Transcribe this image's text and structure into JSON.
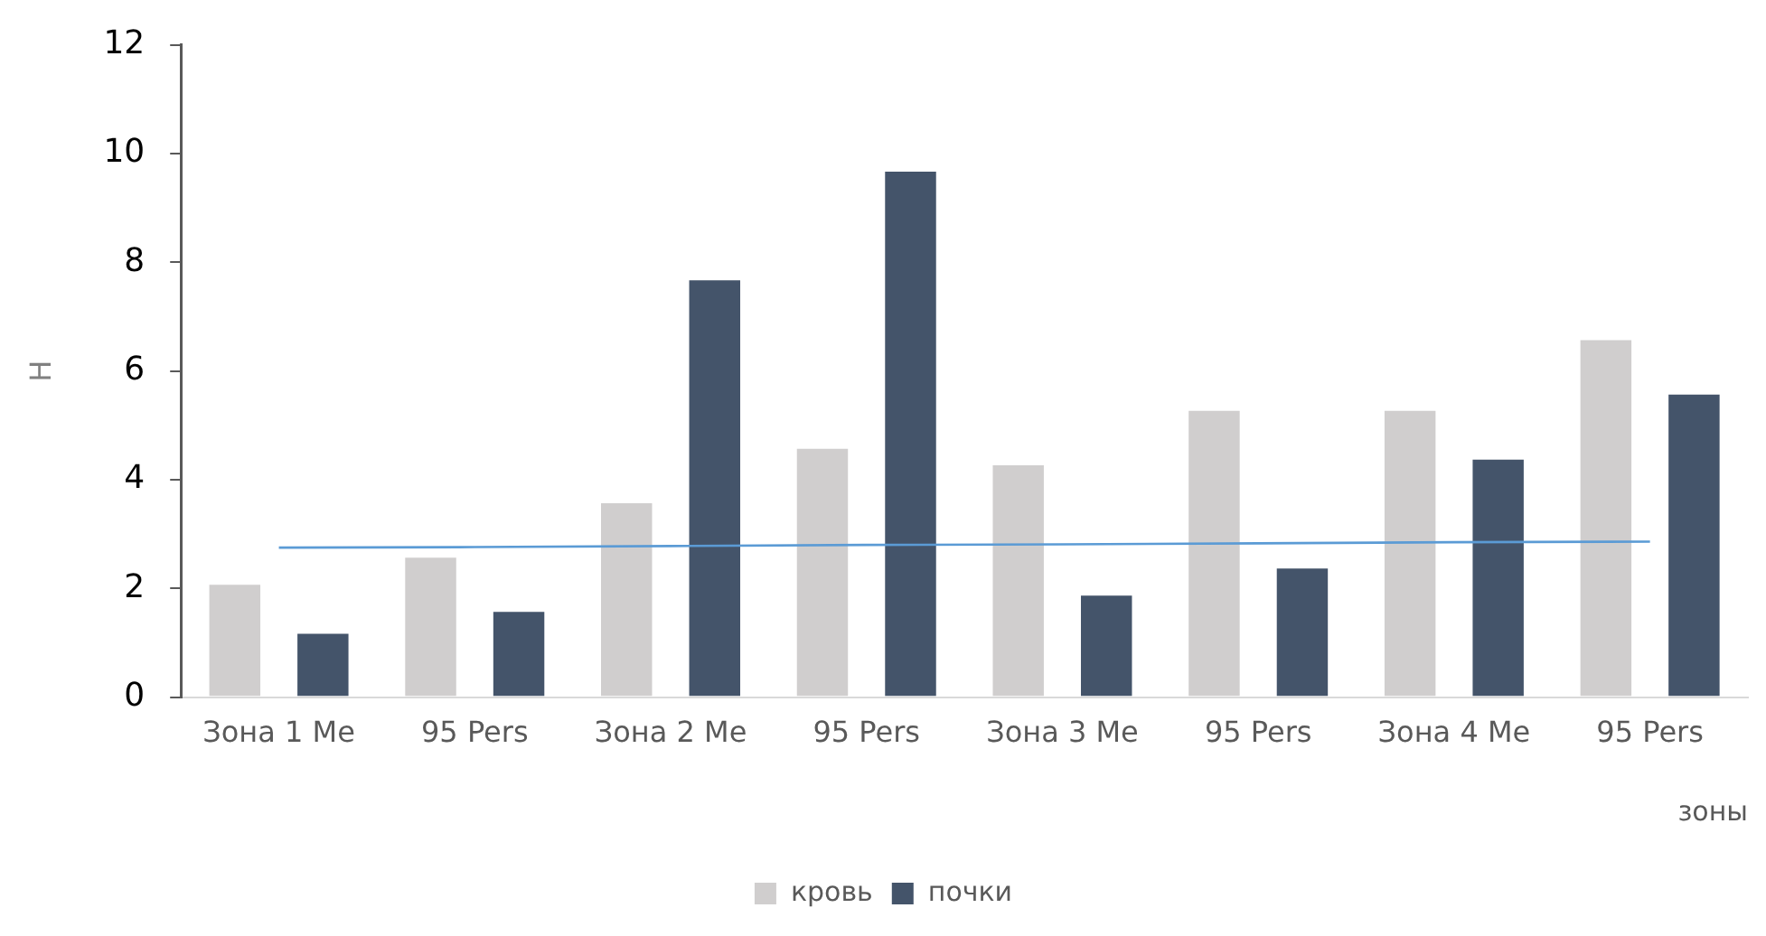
{
  "chart_data": {
    "type": "bar",
    "xlabel": "зоны",
    "ylabel": "Н",
    "categories": [
      "Зона 1 Me",
      "95 Pers",
      "Зона 2 Me",
      "95 Pers",
      "Зона 3 Me",
      "95 Pers",
      "Зона 4 Me",
      "95 Pers"
    ],
    "series": [
      {
        "name": "кровь",
        "color": "#d0cece",
        "values": [
          2.1,
          2.6,
          3.6,
          4.6,
          4.3,
          5.3,
          5.3,
          6.6
        ]
      },
      {
        "name": "почки",
        "color": "#44546a",
        "values": [
          1.2,
          1.6,
          7.7,
          9.7,
          1.9,
          2.4,
          4.4,
          5.6
        ]
      },
      {
        "type": "line",
        "color": "#5b9bd5",
        "values": [
          2.75,
          2.76,
          2.78,
          2.8,
          2.81,
          2.83,
          2.85,
          2.86
        ]
      }
    ],
    "ylim": [
      0,
      12
    ],
    "yticks": [
      0,
      2,
      4,
      6,
      8,
      10,
      12
    ],
    "grid": false,
    "legend": "bottom",
    "marker": "none"
  }
}
